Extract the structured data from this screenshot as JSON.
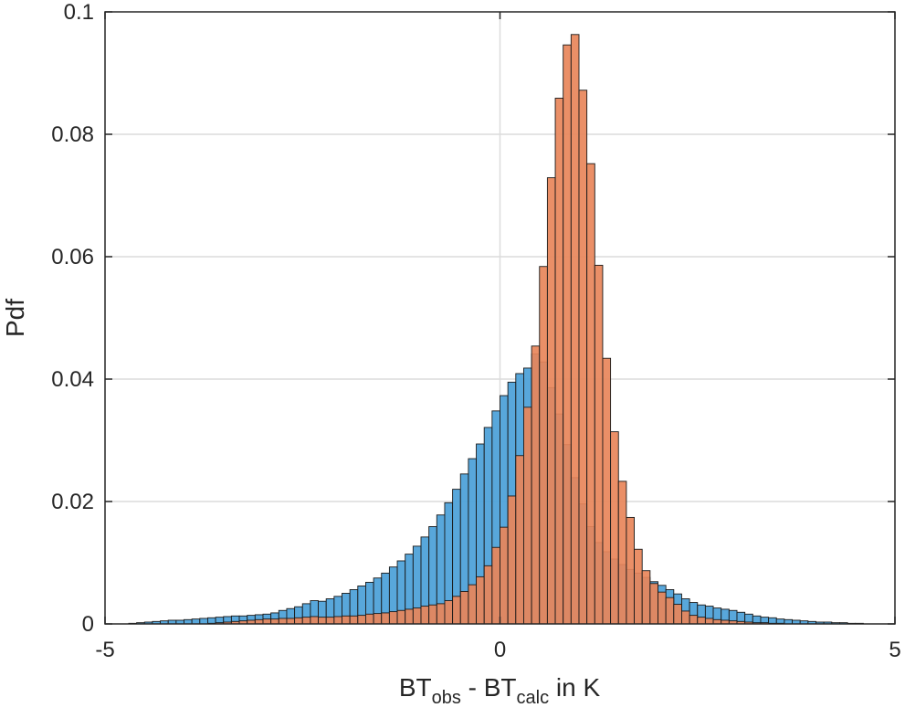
{
  "chart_data": {
    "type": "histogram",
    "title": "",
    "xlabel": {
      "base1": "BT",
      "sub1": "obs",
      "mid": " - BT",
      "sub2": "calc",
      "tail": " in K"
    },
    "ylabel": "Pdf",
    "xlim": [
      -5,
      5
    ],
    "ylim": [
      0,
      0.1
    ],
    "xticks": [
      -5,
      0,
      5
    ],
    "xtick_labels": [
      "-5",
      "0",
      "5"
    ],
    "yticks": [
      0,
      0.02,
      0.04,
      0.06,
      0.08,
      0.1
    ],
    "ytick_labels": [
      "0",
      "0.02",
      "0.04",
      "0.06",
      "0.08",
      "0.1"
    ],
    "grid": "horizontal",
    "bin_width": 0.1,
    "bin_start": -5,
    "series": [
      {
        "color": "#4a9fd8",
        "values": [
          0,
          0,
          0,
          0.0001,
          0.0002,
          0.0003,
          0.0004,
          0.0005,
          0.0006,
          0.0006,
          0.0007,
          0.0008,
          0.0009,
          0.001,
          0.0011,
          0.0012,
          0.0013,
          0.0013,
          0.0014,
          0.0015,
          0.0016,
          0.0018,
          0.0022,
          0.0025,
          0.0028,
          0.0033,
          0.0038,
          0.0037,
          0.0041,
          0.0045,
          0.005,
          0.0056,
          0.0062,
          0.0068,
          0.0075,
          0.0083,
          0.0093,
          0.0103,
          0.0114,
          0.0127,
          0.0142,
          0.0159,
          0.0178,
          0.0198,
          0.022,
          0.0245,
          0.027,
          0.0294,
          0.0321,
          0.0348,
          0.0373,
          0.0395,
          0.0409,
          0.0418,
          0.0441,
          0.0428,
          0.0386,
          0.0343,
          0.0293,
          0.0239,
          0.0196,
          0.0159,
          0.0133,
          0.0118,
          0.0106,
          0.0097,
          0.0089,
          0.0083,
          0.0076,
          0.0069,
          0.0063,
          0.0056,
          0.0049,
          0.0041,
          0.0035,
          0.0031,
          0.0029,
          0.0026,
          0.0024,
          0.0022,
          0.0019,
          0.0016,
          0.0013,
          0.0011,
          0.001,
          0.0008,
          0.0007,
          0.0006,
          0.0005,
          0.0004,
          0.0003,
          0.0003,
          0.0002,
          0.0002,
          0.0001,
          0.0001,
          0,
          0,
          0,
          0
        ]
      },
      {
        "color": "#e8855a",
        "values": [
          0,
          0,
          0,
          0,
          0,
          0,
          0,
          0,
          0,
          0,
          0,
          0,
          0,
          0.0001,
          0.0002,
          0.0003,
          0.0004,
          0.0005,
          0.0006,
          0.0007,
          0.0008,
          0.0008,
          0.0009,
          0.0009,
          0.001,
          0.0011,
          0.0012,
          0.0011,
          0.0011,
          0.0012,
          0.0013,
          0.0013,
          0.0014,
          0.0016,
          0.0017,
          0.0018,
          0.002,
          0.0022,
          0.0024,
          0.0026,
          0.0029,
          0.0031,
          0.0033,
          0.0038,
          0.0045,
          0.0053,
          0.0064,
          0.0077,
          0.0095,
          0.0125,
          0.0158,
          0.0209,
          0.0275,
          0.0354,
          0.0454,
          0.0584,
          0.0729,
          0.0859,
          0.0946,
          0.0963,
          0.0872,
          0.0752,
          0.0586,
          0.0434,
          0.0314,
          0.0233,
          0.0174,
          0.0122,
          0.0087,
          0.0066,
          0.0052,
          0.0043,
          0.0032,
          0.0021,
          0.0014,
          0.0011,
          0.0009,
          0.0007,
          0.0006,
          0.0005,
          0.0004,
          0.0003,
          0.0002,
          0.0002,
          0.0001,
          0.0001,
          0,
          0,
          0,
          0,
          0,
          0,
          0,
          0,
          0,
          0,
          0,
          0,
          0,
          0
        ]
      }
    ]
  }
}
